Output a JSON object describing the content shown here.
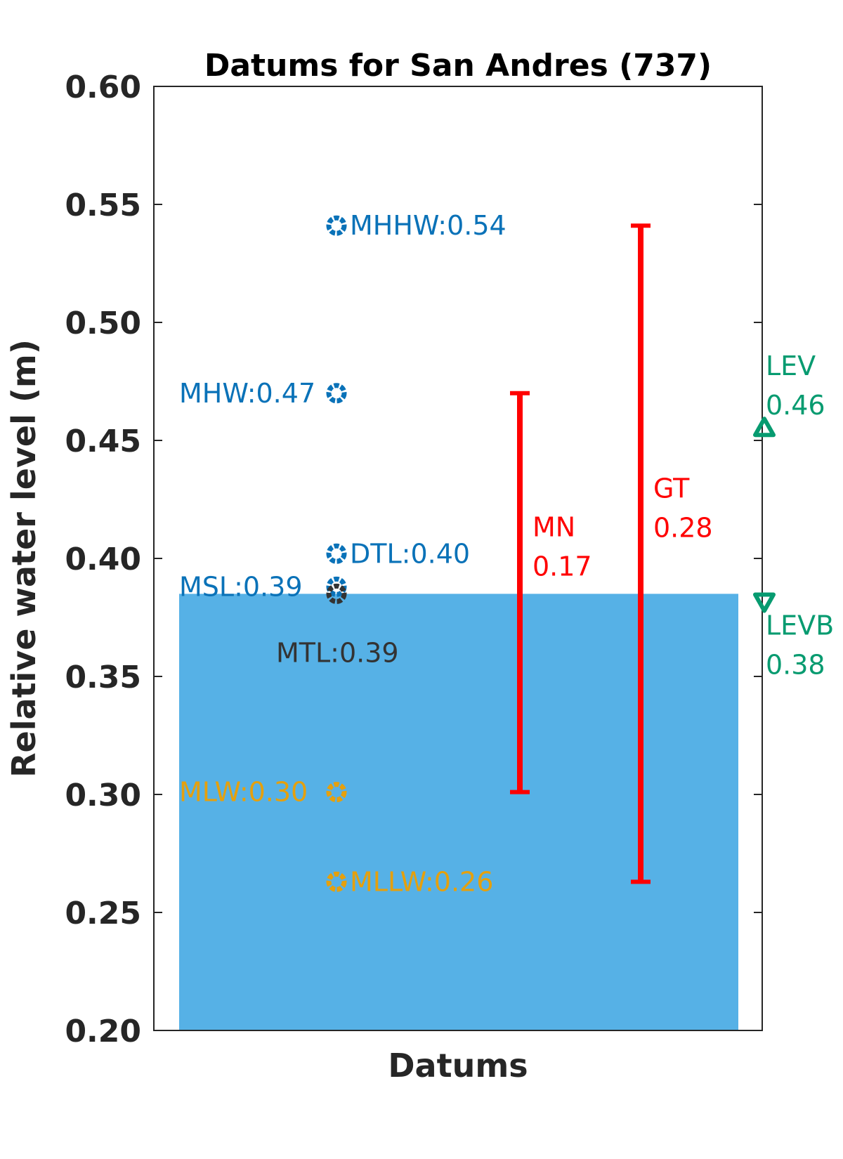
{
  "chart_data": {
    "type": "bar",
    "title": "Datums for San Andres (737)",
    "xlabel": "Datums",
    "ylabel": "Relative water level (m)",
    "ylim": [
      0.2,
      0.6
    ],
    "yticks": [
      "0.20",
      "0.25",
      "0.30",
      "0.35",
      "0.40",
      "0.45",
      "0.50",
      "0.55",
      "0.60"
    ],
    "grid": false,
    "bar": {
      "value": 0.385,
      "color": "#56b1e6"
    },
    "datums": [
      {
        "label": "MHHW:0.54",
        "value": 0.541,
        "color": "#0a72b8",
        "side": "right"
      },
      {
        "label": "MHW:0.47",
        "value": 0.47,
        "color": "#0a72b8",
        "side": "left"
      },
      {
        "label": "DTL:0.40",
        "value": 0.402,
        "color": "#0a72b8",
        "side": "right"
      },
      {
        "label": "MSL:0.39",
        "value": 0.388,
        "color": "#0a72b8",
        "side": "left"
      },
      {
        "label": "MTL:0.39",
        "value": 0.385,
        "color": "#333333",
        "side": "below"
      },
      {
        "label": "MLW:0.30",
        "value": 0.301,
        "color": "#e5a00d",
        "side": "left"
      },
      {
        "label": "MLLW:0.26",
        "value": 0.263,
        "color": "#e5a00d",
        "side": "right"
      }
    ],
    "ranges": [
      {
        "name": "MN",
        "value": "0.17",
        "low": 0.301,
        "high": 0.47,
        "color": "#ff0000"
      },
      {
        "name": "GT",
        "value": "0.28",
        "low": 0.263,
        "high": 0.541,
        "color": "#ff0000"
      }
    ],
    "extremes": [
      {
        "name": "LEV",
        "value": "0.46",
        "level": 0.455,
        "marker": "triangle-up",
        "color": "#079b70"
      },
      {
        "name": "LEVB",
        "value": "0.38",
        "level": 0.382,
        "marker": "triangle-down",
        "color": "#079b70"
      }
    ]
  }
}
